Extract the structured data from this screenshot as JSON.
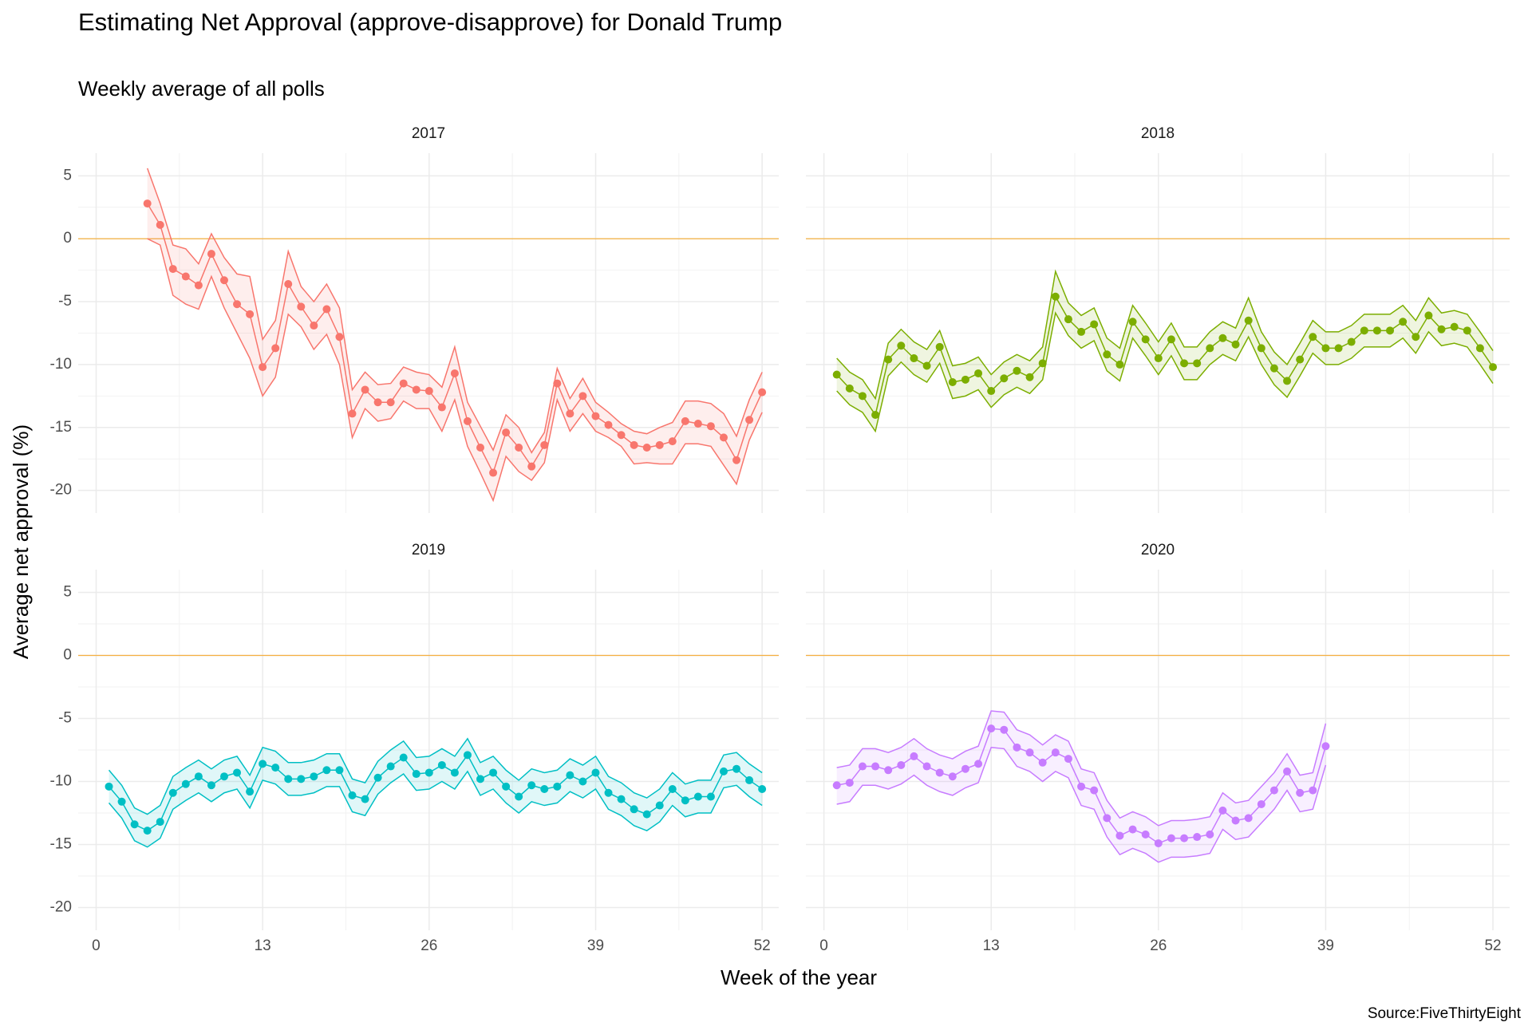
{
  "title": "Estimating Net Approval (approve-disapprove) for Donald Trump",
  "subtitle": "Weekly average of all polls",
  "x_label": "Week of the year",
  "y_label": "Average net approval (%)",
  "source": "Source:FiveThirtyEight",
  "chart_data": [
    {
      "type": "line",
      "title": "2017",
      "color": "#F8766D",
      "hline": 0,
      "hline_color": "#F5B041",
      "grid": true,
      "xlim": [
        -1.4,
        53.3
      ],
      "ylim": [
        -21.8,
        6.8
      ],
      "xticks": [
        0,
        13,
        26,
        39,
        52
      ],
      "yticks": [
        5,
        0,
        -5,
        -10,
        -15,
        -20
      ],
      "x": [
        4,
        5,
        6,
        7,
        8,
        9,
        10,
        11,
        12,
        13,
        14,
        15,
        16,
        17,
        18,
        19,
        20,
        21,
        22,
        23,
        24,
        25,
        26,
        27,
        28,
        29,
        30,
        31,
        32,
        33,
        34,
        35,
        36,
        37,
        38,
        39,
        40,
        41,
        42,
        43,
        44,
        45,
        46,
        47,
        48,
        49,
        50,
        51,
        52
      ],
      "values": [
        2.8,
        1.1,
        -2.4,
        -3.0,
        -3.7,
        -1.2,
        -3.3,
        -5.2,
        -6.0,
        -10.2,
        -8.7,
        -3.6,
        -5.4,
        -6.9,
        -5.6,
        -7.8,
        -13.9,
        -12.0,
        -13.0,
        -13.0,
        -11.5,
        -12.0,
        -12.1,
        -13.4,
        -10.7,
        -14.5,
        -16.6,
        -18.6,
        -15.4,
        -16.6,
        -18.1,
        -16.4,
        -11.5,
        -13.9,
        -12.5,
        -14.1,
        -14.8,
        -15.6,
        -16.4,
        -16.6,
        -16.4,
        -16.1,
        -14.5,
        -14.7,
        -14.9,
        -15.8,
        -17.6,
        -14.4,
        -12.2
      ],
      "upper": [
        5.6,
        2.8,
        -0.5,
        -0.8,
        -2.0,
        0.4,
        -1.5,
        -2.8,
        -3.0,
        -8.0,
        -6.5,
        -1.0,
        -3.8,
        -5.0,
        -3.6,
        -5.5,
        -12.0,
        -10.6,
        -11.6,
        -11.5,
        -10.2,
        -10.6,
        -10.8,
        -11.8,
        -8.6,
        -13.0,
        -14.9,
        -16.8,
        -14.0,
        -15.0,
        -17.0,
        -15.4,
        -10.3,
        -12.7,
        -11.1,
        -13.0,
        -13.8,
        -14.7,
        -15.3,
        -15.5,
        -15.0,
        -14.6,
        -12.9,
        -12.9,
        -13.1,
        -13.9,
        -15.7,
        -12.8,
        -10.6
      ],
      "lower": [
        0.0,
        -0.5,
        -4.5,
        -5.2,
        -5.6,
        -3.0,
        -5.5,
        -7.5,
        -9.5,
        -12.5,
        -11.0,
        -6.0,
        -7.0,
        -8.8,
        -7.6,
        -10.0,
        -15.8,
        -13.5,
        -14.5,
        -14.3,
        -12.9,
        -13.5,
        -13.5,
        -15.3,
        -12.8,
        -16.5,
        -18.6,
        -20.8,
        -17.3,
        -18.5,
        -19.2,
        -17.8,
        -12.8,
        -15.3,
        -13.9,
        -15.3,
        -15.8,
        -16.5,
        -17.9,
        -17.8,
        -17.9,
        -17.9,
        -16.3,
        -16.3,
        -16.5,
        -18.0,
        -19.5,
        -16.0,
        -13.8
      ]
    },
    {
      "type": "line",
      "title": "2018",
      "color": "#7CAE00",
      "hline": 0,
      "hline_color": "#F5B041",
      "grid": true,
      "xlim": [
        -1.4,
        53.3
      ],
      "ylim": [
        -21.8,
        6.8
      ],
      "xticks": [
        0,
        13,
        26,
        39,
        52
      ],
      "yticks": [
        5,
        0,
        -5,
        -10,
        -15,
        -20
      ],
      "x": [
        1,
        2,
        3,
        4,
        5,
        6,
        7,
        8,
        9,
        10,
        11,
        12,
        13,
        14,
        15,
        16,
        17,
        18,
        19,
        20,
        21,
        22,
        23,
        24,
        25,
        26,
        27,
        28,
        29,
        30,
        31,
        32,
        33,
        34,
        35,
        36,
        37,
        38,
        39,
        40,
        41,
        42,
        43,
        44,
        45,
        46,
        47,
        48,
        49,
        50,
        51,
        52
      ],
      "values": [
        -10.8,
        -11.9,
        -12.5,
        -14.0,
        -9.6,
        -8.5,
        -9.5,
        -10.1,
        -8.6,
        -11.4,
        -11.2,
        -10.7,
        -12.1,
        -11.1,
        -10.5,
        -11.0,
        -9.9,
        -4.6,
        -6.4,
        -7.4,
        -6.8,
        -9.2,
        -10.0,
        -6.6,
        -8.0,
        -9.5,
        -8.0,
        -9.9,
        -9.9,
        -8.7,
        -7.9,
        -8.4,
        -6.5,
        -8.7,
        -10.3,
        -11.3,
        -9.6,
        -7.8,
        -8.7,
        -8.7,
        -8.2,
        -7.3,
        -7.3,
        -7.3,
        -6.6,
        -7.8,
        -6.1,
        -7.2,
        -7.0,
        -7.3,
        -8.7,
        -10.2
      ],
      "upper": [
        -9.5,
        -10.6,
        -11.2,
        -12.7,
        -8.3,
        -7.2,
        -8.2,
        -8.8,
        -7.3,
        -10.1,
        -9.9,
        -9.4,
        -10.8,
        -9.8,
        -9.2,
        -9.7,
        -8.6,
        -2.6,
        -5.1,
        -6.1,
        -5.5,
        -7.9,
        -8.7,
        -5.3,
        -6.7,
        -8.2,
        -6.7,
        -8.6,
        -8.6,
        -7.4,
        -6.6,
        -7.1,
        -4.7,
        -7.4,
        -9.0,
        -10.0,
        -8.3,
        -6.5,
        -7.4,
        -7.4,
        -6.9,
        -6.0,
        -6.0,
        -6.0,
        -5.3,
        -6.5,
        -4.7,
        -5.9,
        -5.7,
        -6.0,
        -7.4,
        -8.9
      ],
      "lower": [
        -12.1,
        -13.2,
        -13.8,
        -15.3,
        -10.9,
        -9.8,
        -10.8,
        -11.4,
        -9.9,
        -12.7,
        -12.5,
        -12.0,
        -13.4,
        -12.4,
        -11.8,
        -12.3,
        -11.2,
        -5.9,
        -7.7,
        -8.7,
        -8.1,
        -10.5,
        -11.3,
        -7.9,
        -9.3,
        -10.8,
        -9.3,
        -11.2,
        -11.2,
        -10.0,
        -9.2,
        -9.7,
        -7.8,
        -10.0,
        -11.6,
        -12.6,
        -10.9,
        -9.1,
        -10.0,
        -10.0,
        -9.5,
        -8.6,
        -8.6,
        -8.6,
        -7.9,
        -9.1,
        -7.4,
        -8.5,
        -8.3,
        -8.6,
        -10.0,
        -11.5
      ]
    },
    {
      "type": "line",
      "title": "2019",
      "color": "#00BFC4",
      "hline": 0,
      "hline_color": "#F5B041",
      "grid": true,
      "xlim": [
        -1.4,
        53.3
      ],
      "ylim": [
        -21.8,
        6.8
      ],
      "xticks": [
        0,
        13,
        26,
        39,
        52
      ],
      "yticks": [
        5,
        0,
        -5,
        -10,
        -15,
        -20
      ],
      "x": [
        1,
        2,
        3,
        4,
        5,
        6,
        7,
        8,
        9,
        10,
        11,
        12,
        13,
        14,
        15,
        16,
        17,
        18,
        19,
        20,
        21,
        22,
        23,
        24,
        25,
        26,
        27,
        28,
        29,
        30,
        31,
        32,
        33,
        34,
        35,
        36,
        37,
        38,
        39,
        40,
        41,
        42,
        43,
        44,
        45,
        46,
        47,
        48,
        49,
        50,
        51,
        52
      ],
      "values": [
        -10.4,
        -11.6,
        -13.4,
        -13.9,
        -13.2,
        -10.9,
        -10.2,
        -9.6,
        -10.3,
        -9.6,
        -9.3,
        -10.8,
        -8.6,
        -8.9,
        -9.8,
        -9.8,
        -9.6,
        -9.1,
        -9.1,
        -11.1,
        -11.4,
        -9.7,
        -8.8,
        -8.1,
        -9.4,
        -9.3,
        -8.7,
        -9.3,
        -7.9,
        -9.8,
        -9.3,
        -10.4,
        -11.2,
        -10.3,
        -10.6,
        -10.4,
        -9.5,
        -10.0,
        -9.3,
        -10.9,
        -11.4,
        -12.2,
        -12.6,
        -11.9,
        -10.6,
        -11.5,
        -11.2,
        -11.2,
        -9.2,
        -9.0,
        -9.9,
        -10.6
      ],
      "upper": [
        -9.1,
        -10.3,
        -12.1,
        -12.6,
        -11.9,
        -9.6,
        -8.9,
        -8.3,
        -9.0,
        -8.3,
        -8.0,
        -9.5,
        -7.3,
        -7.6,
        -8.5,
        -8.5,
        -8.3,
        -7.8,
        -7.8,
        -9.8,
        -10.1,
        -8.4,
        -7.5,
        -6.8,
        -8.1,
        -8.0,
        -7.4,
        -8.0,
        -6.6,
        -8.5,
        -8.0,
        -9.1,
        -9.9,
        -9.0,
        -9.3,
        -9.1,
        -8.2,
        -8.7,
        -8.0,
        -9.6,
        -10.1,
        -10.9,
        -11.3,
        -10.6,
        -9.3,
        -10.2,
        -9.9,
        -9.9,
        -7.9,
        -7.7,
        -8.6,
        -9.3
      ],
      "lower": [
        -11.7,
        -12.9,
        -14.7,
        -15.2,
        -14.5,
        -12.2,
        -11.5,
        -10.9,
        -11.6,
        -10.9,
        -10.6,
        -12.1,
        -9.9,
        -10.2,
        -11.1,
        -11.1,
        -10.9,
        -10.4,
        -10.4,
        -12.4,
        -12.7,
        -11.0,
        -10.1,
        -9.4,
        -10.7,
        -10.6,
        -10.0,
        -10.6,
        -9.2,
        -11.1,
        -10.6,
        -11.7,
        -12.5,
        -11.6,
        -11.9,
        -11.7,
        -10.8,
        -11.3,
        -10.6,
        -12.2,
        -12.7,
        -13.5,
        -13.9,
        -13.2,
        -11.9,
        -12.8,
        -12.5,
        -12.5,
        -10.5,
        -10.3,
        -11.2,
        -11.9
      ]
    },
    {
      "type": "line",
      "title": "2020",
      "color": "#C77CFF",
      "hline": 0,
      "hline_color": "#F5B041",
      "grid": true,
      "xlim": [
        -1.4,
        53.3
      ],
      "ylim": [
        -21.8,
        6.8
      ],
      "xticks": [
        0,
        13,
        26,
        39,
        52
      ],
      "yticks": [
        5,
        0,
        -5,
        -10,
        -15,
        -20
      ],
      "x": [
        1,
        2,
        3,
        4,
        5,
        6,
        7,
        8,
        9,
        10,
        11,
        12,
        13,
        14,
        15,
        16,
        17,
        18,
        19,
        20,
        21,
        22,
        23,
        24,
        25,
        26,
        27,
        28,
        29,
        30,
        31,
        32,
        33,
        34,
        35,
        36,
        37,
        38,
        39
      ],
      "values": [
        -10.3,
        -10.1,
        -8.8,
        -8.8,
        -9.1,
        -8.7,
        -8.0,
        -8.8,
        -9.3,
        -9.6,
        -9.0,
        -8.6,
        -5.8,
        -5.9,
        -7.3,
        -7.7,
        -8.5,
        -7.7,
        -8.2,
        -10.4,
        -10.7,
        -12.9,
        -14.3,
        -13.8,
        -14.2,
        -14.9,
        -14.5,
        -14.5,
        -14.4,
        -14.2,
        -12.3,
        -13.1,
        -12.9,
        -11.8,
        -10.7,
        -9.2,
        -10.9,
        -10.7,
        -7.2
      ],
      "upper": [
        -8.9,
        -8.7,
        -7.4,
        -7.4,
        -7.7,
        -7.3,
        -6.6,
        -7.4,
        -7.9,
        -8.2,
        -7.6,
        -7.2,
        -4.4,
        -4.5,
        -5.9,
        -6.3,
        -7.1,
        -6.3,
        -6.8,
        -9.0,
        -9.3,
        -11.5,
        -12.9,
        -12.4,
        -12.8,
        -13.5,
        -13.1,
        -13.1,
        -13.0,
        -12.8,
        -10.9,
        -11.7,
        -11.5,
        -10.4,
        -9.3,
        -7.8,
        -9.5,
        -9.3,
        -5.4
      ],
      "lower": [
        -11.8,
        -11.6,
        -10.3,
        -10.3,
        -10.6,
        -10.2,
        -9.5,
        -10.3,
        -10.8,
        -11.1,
        -10.5,
        -10.1,
        -7.3,
        -7.4,
        -8.8,
        -9.2,
        -10.0,
        -9.2,
        -9.7,
        -11.9,
        -12.2,
        -14.4,
        -15.8,
        -15.3,
        -15.7,
        -16.4,
        -16.0,
        -16.0,
        -15.9,
        -15.7,
        -13.8,
        -14.6,
        -14.4,
        -13.3,
        -12.2,
        -10.7,
        -12.4,
        -12.2,
        -8.7
      ]
    }
  ]
}
